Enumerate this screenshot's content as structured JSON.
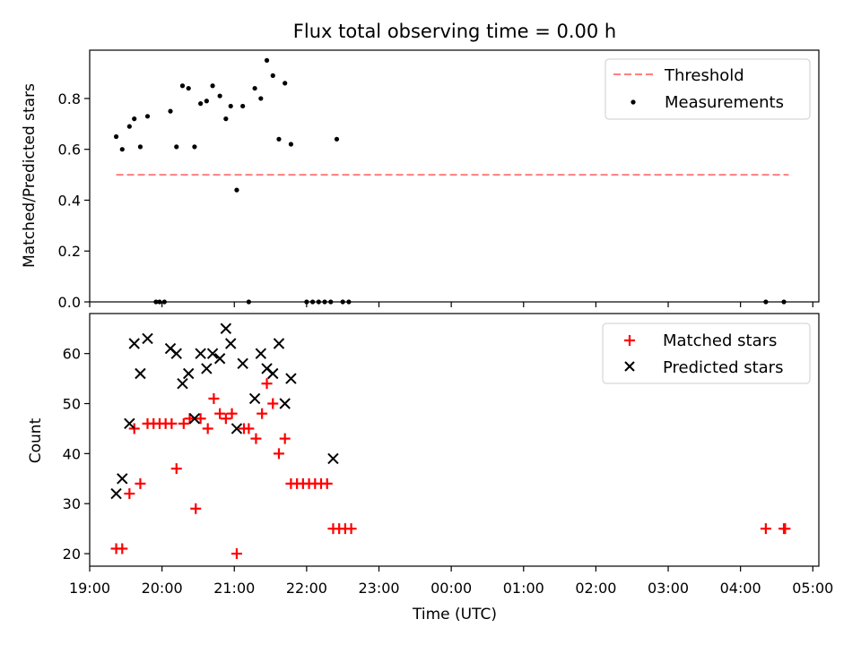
{
  "chart_data": [
    {
      "type": "scatter",
      "title": "Flux total observing time = 0.00 h",
      "xlabel": "",
      "ylabel": "Matched/Predicted stars",
      "xlim": [
        "19:00",
        "05:05"
      ],
      "ylim": [
        0,
        0.99
      ],
      "yticks": [
        "0.0",
        "0.2",
        "0.4",
        "0.6",
        "0.8"
      ],
      "grid": false,
      "legend_position": "top-right",
      "series": [
        {
          "name": "Threshold",
          "style": "dashed-line",
          "color": "#ff7f7f",
          "x": [
            "19:22",
            "04:40"
          ],
          "y": [
            0.5,
            0.5
          ]
        },
        {
          "name": "Measurements",
          "style": "dot",
          "color": "#000000",
          "x": [
            "19:22",
            "19:27",
            "19:33",
            "19:37",
            "19:42",
            "19:48",
            "19:55",
            "19:58",
            "20:02",
            "20:07",
            "20:12",
            "20:17",
            "20:22",
            "20:27",
            "20:32",
            "20:37",
            "20:42",
            "20:48",
            "20:53",
            "20:57",
            "21:02",
            "21:07",
            "21:12",
            "21:17",
            "21:22",
            "21:27",
            "21:32",
            "21:37",
            "21:42",
            "21:47",
            "22:00",
            "22:05",
            "22:10",
            "22:15",
            "22:20",
            "22:25",
            "22:30",
            "22:35",
            "04:21",
            "04:36"
          ],
          "y": [
            0.65,
            0.6,
            0.69,
            0.72,
            0.61,
            0.73,
            0.0,
            0.0,
            0.0,
            0.75,
            0.61,
            0.85,
            0.84,
            0.61,
            0.78,
            0.79,
            0.85,
            0.81,
            0.72,
            0.77,
            0.44,
            0.77,
            0.0,
            0.84,
            0.8,
            0.95,
            0.89,
            0.64,
            0.86,
            0.62,
            0.0,
            0.0,
            0.0,
            0.0,
            0.0,
            0.64,
            0.0,
            0.0,
            0.0,
            0.0
          ]
        }
      ]
    },
    {
      "type": "scatter",
      "title": "",
      "xlabel": "Time (UTC)",
      "ylabel": "Count",
      "xticks": [
        "19:00",
        "20:00",
        "21:00",
        "22:00",
        "23:00",
        "00:00",
        "01:00",
        "02:00",
        "03:00",
        "04:00",
        "05:00"
      ],
      "yticks": [
        "20",
        "30",
        "40",
        "50",
        "60"
      ],
      "ylim": [
        17.5,
        68
      ],
      "grid": false,
      "legend_position": "top-right",
      "series": [
        {
          "name": "Matched stars",
          "style": "plus",
          "color": "#ff0000",
          "x": [
            "19:22",
            "19:27",
            "19:33",
            "19:37",
            "19:42",
            "19:48",
            "19:53",
            "19:58",
            "20:03",
            "20:08",
            "20:12",
            "20:18",
            "20:23",
            "20:28",
            "20:32",
            "20:38",
            "20:43",
            "20:48",
            "20:53",
            "20:58",
            "21:02",
            "21:08",
            "21:12",
            "21:18",
            "21:23",
            "21:27",
            "21:32",
            "21:37",
            "21:42",
            "21:47",
            "21:52",
            "21:57",
            "22:02",
            "22:07",
            "22:12",
            "22:17",
            "22:22",
            "22:27",
            "22:32",
            "22:37",
            "04:21",
            "04:36",
            "04:37"
          ],
          "y": [
            21,
            21,
            32,
            45,
            34,
            46,
            46,
            46,
            46,
            46,
            37,
            46,
            47,
            29,
            47,
            45,
            51,
            48,
            47,
            48,
            20,
            45,
            45,
            43,
            48,
            54,
            50,
            40,
            43,
            34,
            34,
            34,
            34,
            34,
            34,
            34,
            25,
            25,
            25,
            25,
            25,
            25,
            25
          ]
        },
        {
          "name": "Predicted stars",
          "style": "x",
          "color": "#000000",
          "x": [
            "19:22",
            "19:27",
            "19:33",
            "19:37",
            "19:42",
            "19:48",
            "20:07",
            "20:12",
            "20:17",
            "20:22",
            "20:27",
            "20:32",
            "20:37",
            "20:42",
            "20:48",
            "20:53",
            "20:57",
            "21:02",
            "21:07",
            "21:17",
            "21:22",
            "21:27",
            "21:32",
            "21:37",
            "21:42",
            "21:47",
            "22:22"
          ],
          "y": [
            32,
            35,
            46,
            62,
            56,
            63,
            61,
            60,
            54,
            56,
            47,
            60,
            57,
            60,
            59,
            65,
            62,
            45,
            58,
            51,
            60,
            57,
            56,
            62,
            50,
            55,
            39
          ]
        }
      ]
    }
  ]
}
